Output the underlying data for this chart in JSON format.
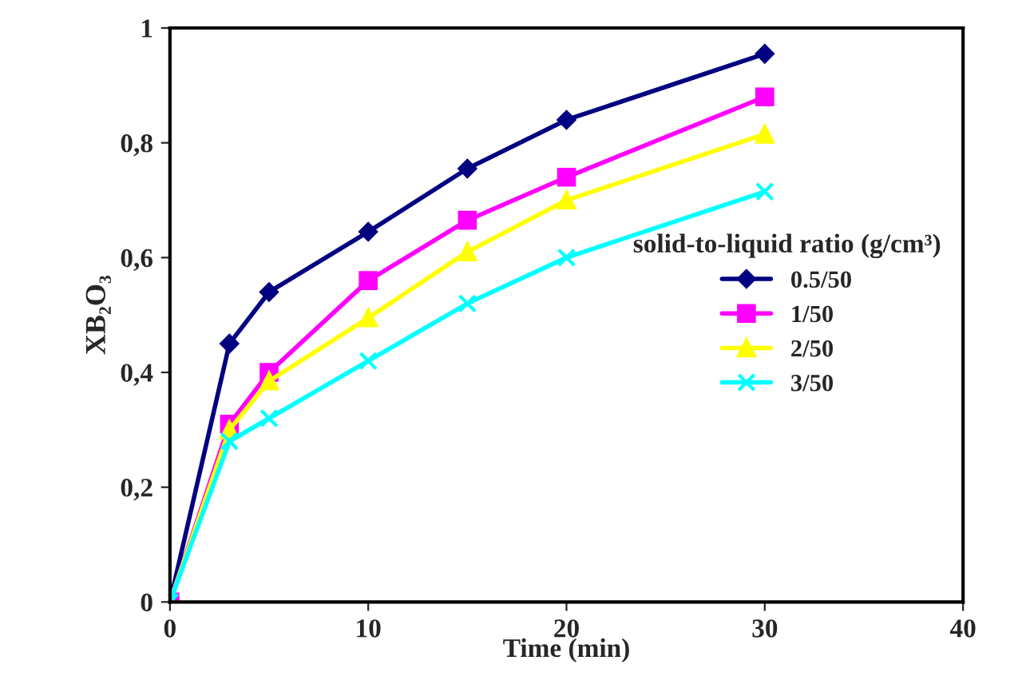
{
  "chart_data": {
    "type": "line",
    "xlabel": "Time (min)",
    "ylabel": "XB₂O₃",
    "legend_title": "solid-to-liquid ratio (g/cm³)",
    "x": [
      0,
      3,
      5,
      10,
      15,
      20,
      30
    ],
    "series": [
      {
        "name": "0.5/50",
        "color": "#000080",
        "marker": "diamond",
        "values": [
          0,
          0.45,
          0.54,
          0.645,
          0.755,
          0.84,
          0.955
        ]
      },
      {
        "name": "1/50",
        "color": "#ff00ff",
        "marker": "square",
        "values": [
          0,
          0.31,
          0.4,
          0.56,
          0.665,
          0.74,
          0.88
        ]
      },
      {
        "name": "2/50",
        "color": "#ffff00",
        "marker": "triangle",
        "values": [
          0,
          0.3,
          0.385,
          0.495,
          0.61,
          0.7,
          0.815
        ]
      },
      {
        "name": "3/50",
        "color": "#00ffff",
        "marker": "cross",
        "values": [
          0,
          0.28,
          0.32,
          0.42,
          0.52,
          0.6,
          0.715
        ]
      }
    ],
    "xlim": [
      0,
      40
    ],
    "xticks": [
      0,
      10,
      20,
      30,
      40
    ],
    "ylim": [
      0,
      1
    ],
    "yticks": [
      0,
      {
        "value": 0.2,
        "label": "0,2"
      },
      {
        "value": 0.4,
        "label": "0,4"
      },
      {
        "value": 0.6,
        "label": "0,6"
      },
      {
        "value": 0.8,
        "label": "0,8"
      },
      1
    ],
    "grid": false,
    "legend": "center right",
    "line_style": "solid"
  }
}
